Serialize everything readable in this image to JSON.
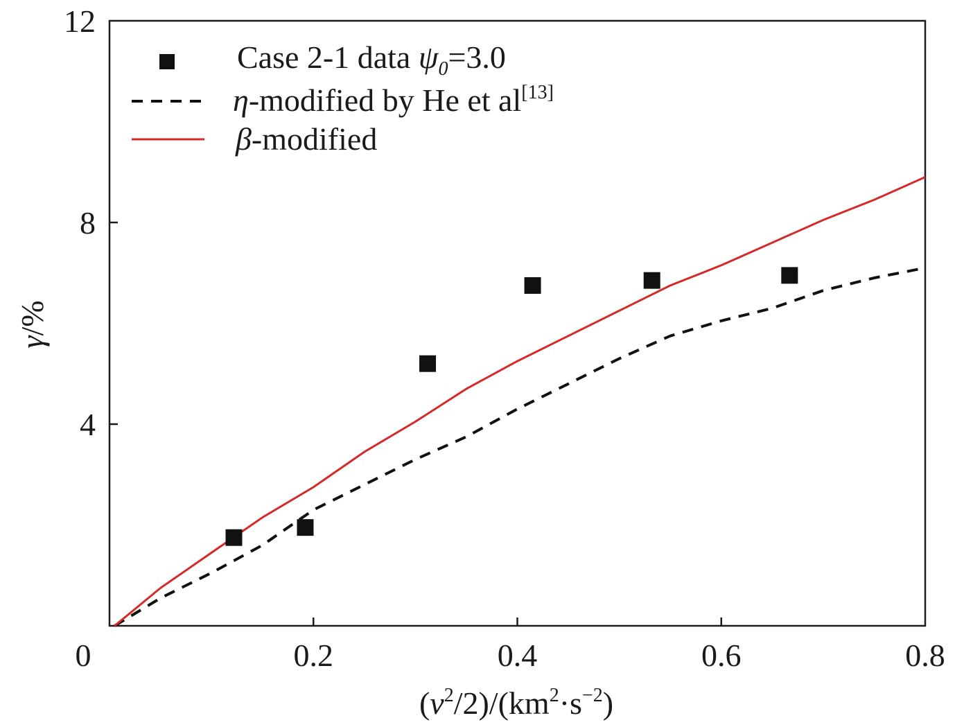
{
  "chart_data": {
    "type": "line",
    "xlabel": {
      "pre": "(",
      "v": "v",
      "sup1": "2",
      "mid": "/2)/(km",
      "sup2": "2",
      "dot": "·s",
      "sup3": "−2",
      "post": ")"
    },
    "ylabel": {
      "gamma": "γ",
      "pct": "/%"
    },
    "xlim": [
      0,
      0.8
    ],
    "ylim": [
      0,
      12
    ],
    "x_ticks": [
      {
        "value": 0,
        "label": "0"
      },
      {
        "value": 0.2,
        "label": "0.2"
      },
      {
        "value": 0.4,
        "label": "0.4"
      },
      {
        "value": 0.6,
        "label": "0.6"
      },
      {
        "value": 0.8,
        "label": "0.8"
      }
    ],
    "y_ticks": [
      {
        "value": 4,
        "label": "4"
      },
      {
        "value": 8,
        "label": "8"
      },
      {
        "value": 12,
        "label": "12"
      }
    ],
    "grid": false,
    "legend_position": "top-left",
    "series": [
      {
        "name": "Case 2-1 data ψ0=3.0",
        "kind": "scatter",
        "marker": "square",
        "color": "#111111",
        "x": [
          0.122,
          0.192,
          0.312,
          0.415,
          0.532,
          0.667
        ],
        "y": [
          1.75,
          1.95,
          5.2,
          6.75,
          6.85,
          6.95
        ]
      },
      {
        "name": "η-modified by He et al[13]",
        "kind": "line",
        "style": "dashed",
        "color": "#111111",
        "x": [
          0.005,
          0.05,
          0.1,
          0.15,
          0.2,
          0.25,
          0.3,
          0.35,
          0.4,
          0.45,
          0.5,
          0.55,
          0.6,
          0.65,
          0.7,
          0.75,
          0.8
        ],
        "y": [
          0.0,
          0.55,
          1.05,
          1.6,
          2.3,
          2.8,
          3.3,
          3.75,
          4.3,
          4.8,
          5.3,
          5.75,
          6.05,
          6.3,
          6.65,
          6.9,
          7.1
        ]
      },
      {
        "name": "β-modified",
        "kind": "line",
        "style": "solid",
        "color": "#d42a2a",
        "x": [
          0.005,
          0.05,
          0.1,
          0.15,
          0.2,
          0.25,
          0.3,
          0.35,
          0.4,
          0.45,
          0.5,
          0.55,
          0.6,
          0.65,
          0.7,
          0.75,
          0.8
        ],
        "y": [
          0.0,
          0.75,
          1.45,
          2.15,
          2.75,
          3.45,
          4.05,
          4.7,
          5.25,
          5.75,
          6.25,
          6.75,
          7.15,
          7.6,
          8.05,
          8.45,
          8.9
        ]
      }
    ],
    "legend": [
      {
        "pre": "Case 2-1 data ",
        "sym": "ψ",
        "sub": "0",
        "post": "=3.0"
      },
      {
        "sym": "η",
        "pre": "-modified by He et al",
        "sup": "[13]"
      },
      {
        "sym": "β",
        "pre": "-modified"
      }
    ]
  }
}
